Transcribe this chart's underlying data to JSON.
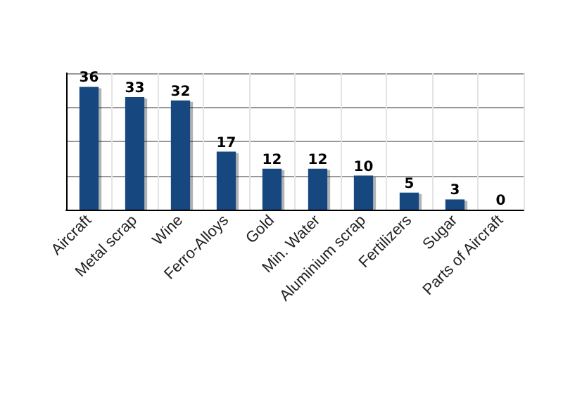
{
  "chart_data": {
    "type": "bar",
    "categories": [
      "Aircraft",
      "Metal scrap",
      "Wine",
      "Ferro-Alloys",
      "Gold",
      "Min. Water",
      "Aluminium scrap",
      "Fertilizers",
      "Sugar",
      "Parts of Aircraft"
    ],
    "values": [
      36,
      33,
      32,
      17,
      12,
      12,
      10,
      5,
      3,
      0
    ],
    "color": "#13467e",
    "data_labels": true,
    "grid": true,
    "tick_labels": "x",
    "ylim": [
      0,
      40
    ],
    "yticks": [
      {
        "value": 0,
        "label": null
      },
      {
        "value": 10,
        "label": null
      },
      {
        "value": 20,
        "label": null
      },
      {
        "value": 30,
        "label": null
      },
      {
        "value": 40,
        "label": null
      }
    ]
  }
}
